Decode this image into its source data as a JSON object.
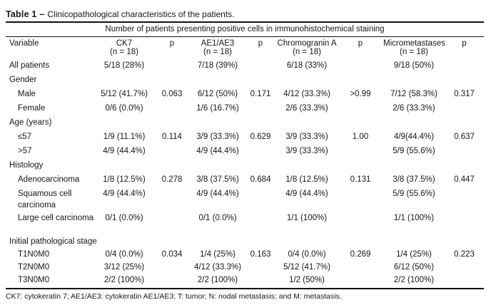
{
  "title": {
    "label": "Table 1 –",
    "text": "Clinicopathological characteristics of the patients."
  },
  "table": {
    "spanning_header": "Number of patients presenting positive cells in immunohistochemical staining",
    "columns": [
      {
        "label": "Variable",
        "sub": ""
      },
      {
        "label": "CK7",
        "sub": "(n = 18)"
      },
      {
        "label": "p",
        "sub": ""
      },
      {
        "label": "AE1/AE3",
        "sub": "(n = 18)"
      },
      {
        "label": "p",
        "sub": ""
      },
      {
        "label": "Chromogranin A",
        "sub": "(n = 18)"
      },
      {
        "label": "p",
        "sub": ""
      },
      {
        "label": "Micrometastases",
        "sub": "(n = 18)"
      },
      {
        "label": "p",
        "sub": ""
      }
    ],
    "rows": [
      {
        "type": "data",
        "indent": false,
        "variable": "All patients",
        "cells": [
          "5/18 (28%)",
          "",
          "7/18 (39%)",
          "",
          "6/18 (33%)",
          "",
          "9/18 (50%)",
          ""
        ]
      },
      {
        "type": "section",
        "variable": "Gender"
      },
      {
        "type": "data",
        "indent": true,
        "variable": "Male",
        "cells": [
          "5/12 (41.7%)",
          "0.063",
          "6/12 (50%)",
          "0.171",
          "4/12 (33.3%)",
          ">0.99",
          "7/12 (58.3%)",
          "0.317"
        ]
      },
      {
        "type": "data",
        "indent": true,
        "variable": "Female",
        "cells": [
          "0/6 (0.0%)",
          "",
          "1/6 (16.7%)",
          "",
          "2/6 (33.3%)",
          "",
          "2/6 (33.3%)",
          ""
        ]
      },
      {
        "type": "section",
        "variable": "Age (years)"
      },
      {
        "type": "data",
        "indent": true,
        "variable": "≤57",
        "cells": [
          "1/9 (11.1%)",
          "0.114",
          "3/9 (33.3%)",
          "0.629",
          "3/9 (33.3%)",
          "1.00",
          "4/9(44.4%)",
          "0.637"
        ]
      },
      {
        "type": "data",
        "indent": true,
        "variable": ">57",
        "cells": [
          "4/9 (44.4%)",
          "",
          "4/9 (44.4%)",
          "",
          "3/9 (33.3%)",
          "",
          "5/9 (55.6%)",
          ""
        ]
      },
      {
        "type": "section",
        "variable": "Histology"
      },
      {
        "type": "data",
        "indent": true,
        "variable": "Adenocarcinoma",
        "cells": [
          "1/8 (12.5%)",
          "0.278",
          "3/8 (37.5%)",
          "0.684",
          "1/8 (12.5%)",
          "0.131",
          "3/8 (37.5%)",
          "0.447"
        ]
      },
      {
        "type": "data",
        "indent": true,
        "wrap": true,
        "variable": "Squamous cell carcinoma",
        "cells": [
          "4/9 (44.4%)",
          "",
          "4/9 (44.4%)",
          "",
          "4/9 (44.4%)",
          "",
          "5/9 (55.6%)",
          ""
        ]
      },
      {
        "type": "data",
        "indent": true,
        "wrap": true,
        "variable": "Large cell carcinoma",
        "cells": [
          "0/1 (0.0%)",
          "",
          "0/1 (0.0%)",
          "",
          "1/1 (100%)",
          "",
          "1/1 (100%)",
          ""
        ]
      },
      {
        "type": "section",
        "variable": "Initial pathological stage"
      },
      {
        "type": "data",
        "indent": true,
        "variable": "T1N0M0",
        "cells": [
          "0/4 (0.0%)",
          "0.034",
          "1/4 (25%)",
          "0.163",
          "0/4 (0.0%)",
          "0.269",
          "1/4 (25%)",
          "0.223"
        ]
      },
      {
        "type": "data",
        "indent": true,
        "variable": "T2N0M0",
        "cells": [
          "3/12 (25%)",
          "",
          "4/12 (33.3%)",
          "",
          "5/12 (41.7%)",
          "",
          "6/12 (50%)",
          ""
        ]
      },
      {
        "type": "data",
        "indent": true,
        "variable": "T3N0M0",
        "cells": [
          "2/2 (100%)",
          "",
          "2/2 (100%)",
          "",
          "1/2 (50%)",
          "",
          "2/2 (100%)",
          ""
        ]
      }
    ]
  },
  "footnote": "CK7: cytokeratin 7; AE1/AE3: cytokeratin AE1/AE3; T: tumor; N: nodal metastasis; and M: metastasis."
}
